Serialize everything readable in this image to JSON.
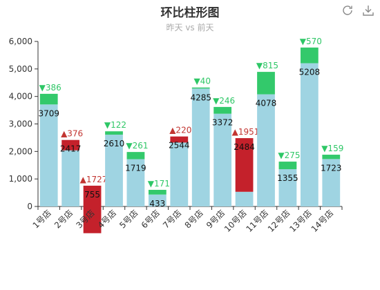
{
  "title": "环比柱形图",
  "subtitle": "昨天 vs 前天",
  "toolbox": {
    "refresh_icon": "refresh-icon",
    "download_icon": "download-icon"
  },
  "colors": {
    "base": "#9fd4e2",
    "up": "#c4212b",
    "down": "#33c96b",
    "axis": "#333333"
  },
  "chart_data": {
    "type": "bar",
    "title": "环比柱形图",
    "subtitle": "昨天 vs 前天",
    "categories": [
      "1号店",
      "2号店",
      "3号店",
      "4号店",
      "5号店",
      "6号店",
      "7号店",
      "8号店",
      "9号店",
      "10号店",
      "11号店",
      "12号店",
      "13号店",
      "14号店"
    ],
    "yesterday": [
      3709,
      2417,
      755,
      2610,
      1719,
      433,
      2544,
      4285,
      3372,
      2484,
      4078,
      1355,
      5208,
      1723
    ],
    "change": [
      386,
      376,
      1727,
      122,
      261,
      171,
      220,
      40,
      246,
      1951,
      815,
      275,
      570,
      159
    ],
    "direction": [
      "down",
      "up",
      "up",
      "down",
      "down",
      "down",
      "up",
      "down",
      "down",
      "up",
      "down",
      "down",
      "down",
      "down"
    ],
    "ylim": [
      0,
      6000
    ],
    "yticks": [
      "0",
      "1,000",
      "2,000",
      "3,000",
      "4,000",
      "5,000",
      "6,000"
    ],
    "grid": false,
    "legend": "none"
  }
}
